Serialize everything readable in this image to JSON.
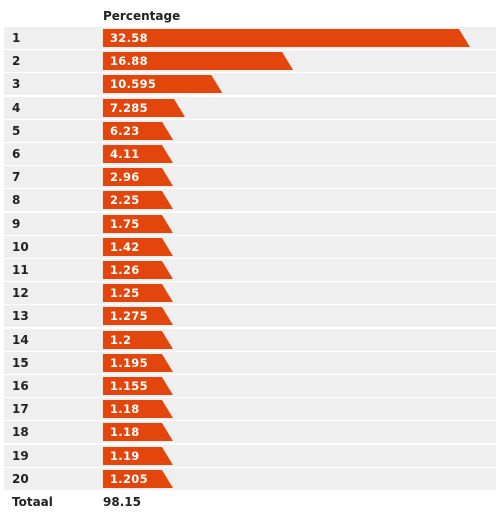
{
  "chart_data": {
    "type": "bar",
    "orientation": "horizontal",
    "column_header": "Percentage",
    "categories": [
      "1",
      "2",
      "3",
      "4",
      "5",
      "6",
      "7",
      "8",
      "9",
      "10",
      "11",
      "12",
      "13",
      "14",
      "15",
      "16",
      "17",
      "18",
      "19",
      "20"
    ],
    "values": [
      32.58,
      16.88,
      10.595,
      7.285,
      6.23,
      4.11,
      2.96,
      2.25,
      1.75,
      1.42,
      1.26,
      1.25,
      1.275,
      1.2,
      1.195,
      1.155,
      1.18,
      1.18,
      1.19,
      1.205
    ],
    "value_labels": [
      "32.58",
      "16.88",
      "10.595",
      "7.285",
      "6.23",
      "4.11",
      "2.96",
      "2.25",
      "1.75",
      "1.42",
      "1.26",
      "1.25",
      "1.275",
      "1.2",
      "1.195",
      "1.155",
      "1.18",
      "1.18",
      "1.19",
      "1.205"
    ],
    "total_label": "Totaal",
    "total_value": "98.15",
    "bar_color": "#e2460c",
    "row_background": "#efefef",
    "grid": false
  }
}
